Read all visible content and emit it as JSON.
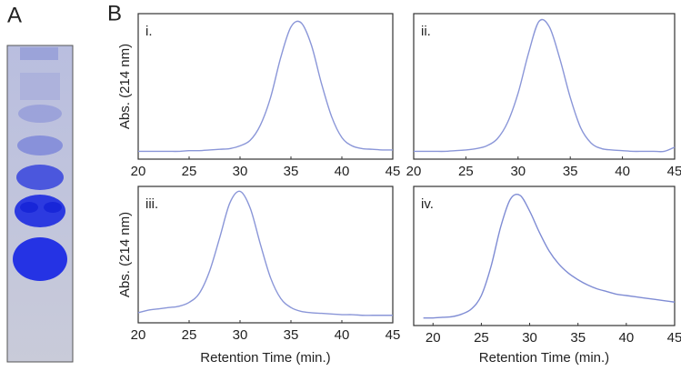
{
  "panel_labels": [
    "A",
    "B"
  ],
  "chart_data": [
    {
      "type": "line",
      "title": "i.",
      "ylabel": "Abs. (214 nm)",
      "xlim": [
        20,
        45
      ],
      "xticks": [
        20,
        25,
        30,
        35,
        40,
        45
      ],
      "ylim": [
        0,
        1
      ],
      "color": "#8a96d8",
      "x": [
        20,
        21,
        22,
        23,
        24,
        25,
        26,
        27,
        28,
        29,
        30,
        31,
        32,
        33,
        34,
        35,
        36,
        37,
        38,
        39,
        40,
        41,
        42,
        43,
        44,
        45
      ],
      "values": [
        0.03,
        0.03,
        0.03,
        0.03,
        0.03,
        0.035,
        0.035,
        0.04,
        0.045,
        0.05,
        0.07,
        0.11,
        0.22,
        0.42,
        0.71,
        0.93,
        0.96,
        0.8,
        0.52,
        0.28,
        0.13,
        0.07,
        0.05,
        0.045,
        0.04,
        0.04
      ]
    },
    {
      "type": "line",
      "title": "ii.",
      "xlim": [
        20,
        45
      ],
      "xticks": [
        20,
        25,
        30,
        35,
        40,
        45
      ],
      "ylim": [
        0,
        1
      ],
      "color": "#8a96d8",
      "x": [
        20,
        21,
        22,
        23,
        24,
        25,
        26,
        27,
        28,
        29,
        30,
        31,
        32,
        33,
        34,
        35,
        36,
        37,
        38,
        39,
        40,
        41,
        42,
        43,
        44,
        45
      ],
      "values": [
        0.03,
        0.03,
        0.03,
        0.03,
        0.035,
        0.04,
        0.05,
        0.07,
        0.12,
        0.24,
        0.45,
        0.74,
        0.97,
        0.93,
        0.7,
        0.42,
        0.2,
        0.09,
        0.05,
        0.04,
        0.035,
        0.03,
        0.03,
        0.03,
        0.03,
        0.06
      ]
    },
    {
      "type": "line",
      "title": "iii.",
      "ylabel": "Abs. (214 nm)",
      "xlabel": "Retention Time (min.)",
      "xlim": [
        20,
        45
      ],
      "xticks": [
        20,
        25,
        30,
        35,
        40,
        45
      ],
      "ylim": [
        0,
        1
      ],
      "color": "#8a96d8",
      "x": [
        20,
        21,
        22,
        23,
        24,
        25,
        26,
        27,
        28,
        29,
        30,
        31,
        32,
        33,
        34,
        35,
        36,
        37,
        38,
        39,
        40,
        41,
        42,
        43,
        44,
        45
      ],
      "values": [
        0.05,
        0.07,
        0.08,
        0.09,
        0.1,
        0.13,
        0.2,
        0.37,
        0.63,
        0.9,
        0.99,
        0.86,
        0.58,
        0.32,
        0.16,
        0.09,
        0.06,
        0.05,
        0.045,
        0.04,
        0.035,
        0.035,
        0.03,
        0.03,
        0.03,
        0.03
      ]
    },
    {
      "type": "line",
      "title": "iv.",
      "xlabel": "Retention Time (min.)",
      "xlim": [
        18,
        45
      ],
      "xticks": [
        20,
        25,
        30,
        35,
        40,
        45
      ],
      "ylim": [
        0,
        1
      ],
      "color": "#7f8cd4",
      "x": [
        19,
        20,
        21,
        22,
        23,
        24,
        25,
        26,
        27,
        28,
        29,
        30,
        31,
        32,
        33,
        34,
        35,
        36,
        37,
        38,
        39,
        40,
        41,
        42,
        43,
        44,
        45
      ],
      "values": [
        0.03,
        0.03,
        0.035,
        0.04,
        0.06,
        0.1,
        0.2,
        0.42,
        0.72,
        0.93,
        0.96,
        0.84,
        0.68,
        0.54,
        0.44,
        0.37,
        0.32,
        0.28,
        0.25,
        0.23,
        0.21,
        0.2,
        0.19,
        0.18,
        0.17,
        0.16,
        0.15
      ]
    }
  ]
}
